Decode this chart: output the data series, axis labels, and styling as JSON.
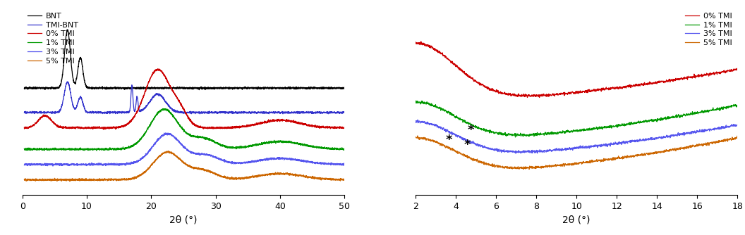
{
  "left_plot": {
    "xlabel": "2θ (°)",
    "xlim": [
      0,
      50
    ],
    "xticks": [
      0,
      10,
      20,
      30,
      40,
      50
    ],
    "legend_labels": [
      "BNT",
      "TMI-BNT",
      "0% TMI",
      "1% TMI",
      "3% TMI",
      "5% TMI"
    ],
    "legend_colors": [
      "#000000",
      "#3333cc",
      "#cc0000",
      "#009900",
      "#5555ee",
      "#cc6600"
    ]
  },
  "right_plot": {
    "xlabel": "2θ (°)",
    "xlim": [
      2,
      18
    ],
    "xticks": [
      2,
      4,
      6,
      8,
      10,
      12,
      14,
      16,
      18
    ],
    "legend_labels": [
      "0% TMI",
      "1% TMI",
      "3% TMI",
      "5% TMI"
    ],
    "legend_colors": [
      "#cc0000",
      "#009900",
      "#5555ee",
      "#cc6600"
    ]
  },
  "background_color": "#ffffff",
  "line_width": 0.9
}
